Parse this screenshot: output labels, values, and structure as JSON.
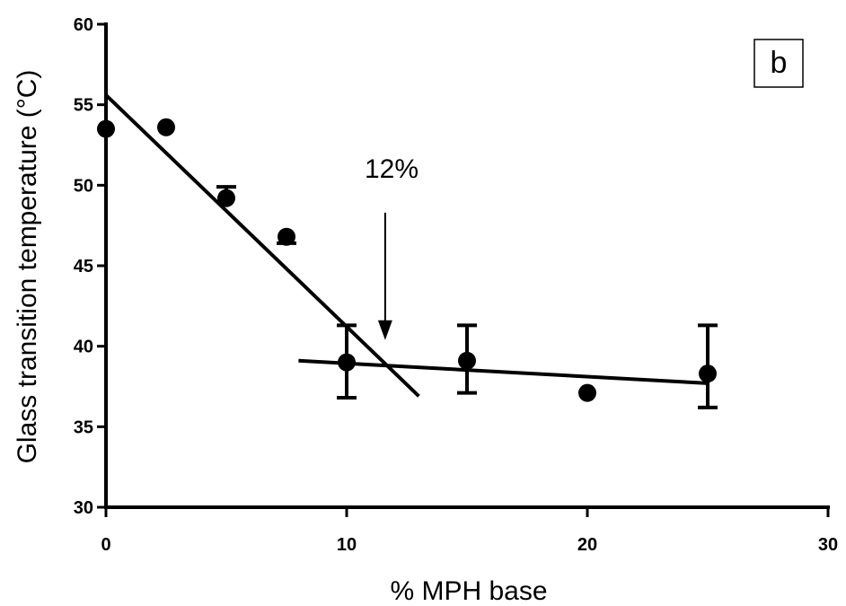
{
  "chart_data": {
    "type": "scatter",
    "xlabel": "% MPH base",
    "ylabel": "Glass transition temperature (°C)",
    "xlim": [
      0,
      30
    ],
    "ylim": [
      30,
      60
    ],
    "x_ticks": [
      0,
      10,
      20,
      30
    ],
    "x_tick_labels": [
      "0",
      "10",
      "20",
      "30"
    ],
    "y_ticks": [
      30,
      35,
      40,
      45,
      50,
      55,
      60
    ],
    "y_tick_labels": [
      "30",
      "35",
      "40",
      "45",
      "50",
      "55",
      "60"
    ],
    "grid": false,
    "points": [
      {
        "x": 0,
        "y": 53.5
      },
      {
        "x": 2.5,
        "y": 53.6
      },
      {
        "x": 5,
        "y": 49.2,
        "err_up": 0.7,
        "err_down": 0
      },
      {
        "x": 7.5,
        "y": 46.8,
        "err_up": 0,
        "err_down": 0.4
      },
      {
        "x": 10,
        "y": 39.0,
        "err_up": 2.3,
        "err_down": 2.2
      },
      {
        "x": 15,
        "y": 39.1,
        "err_up": 2.2,
        "err_down": 2.0
      },
      {
        "x": 20,
        "y": 37.1
      },
      {
        "x": 25,
        "y": 38.3,
        "err_up": 3.0,
        "err_down": 2.1
      }
    ],
    "fit_lines": [
      {
        "x": [
          0,
          13
        ],
        "y": [
          55.6,
          36.9
        ]
      },
      {
        "x": 8,
        "x_end": 25,
        "y": 39.1,
        "y_end": 37.7
      }
    ],
    "annotation": {
      "text": "12%",
      "x": 11.6,
      "y_from": 48.3,
      "y_to": 40.5
    },
    "panel_label": "b"
  }
}
